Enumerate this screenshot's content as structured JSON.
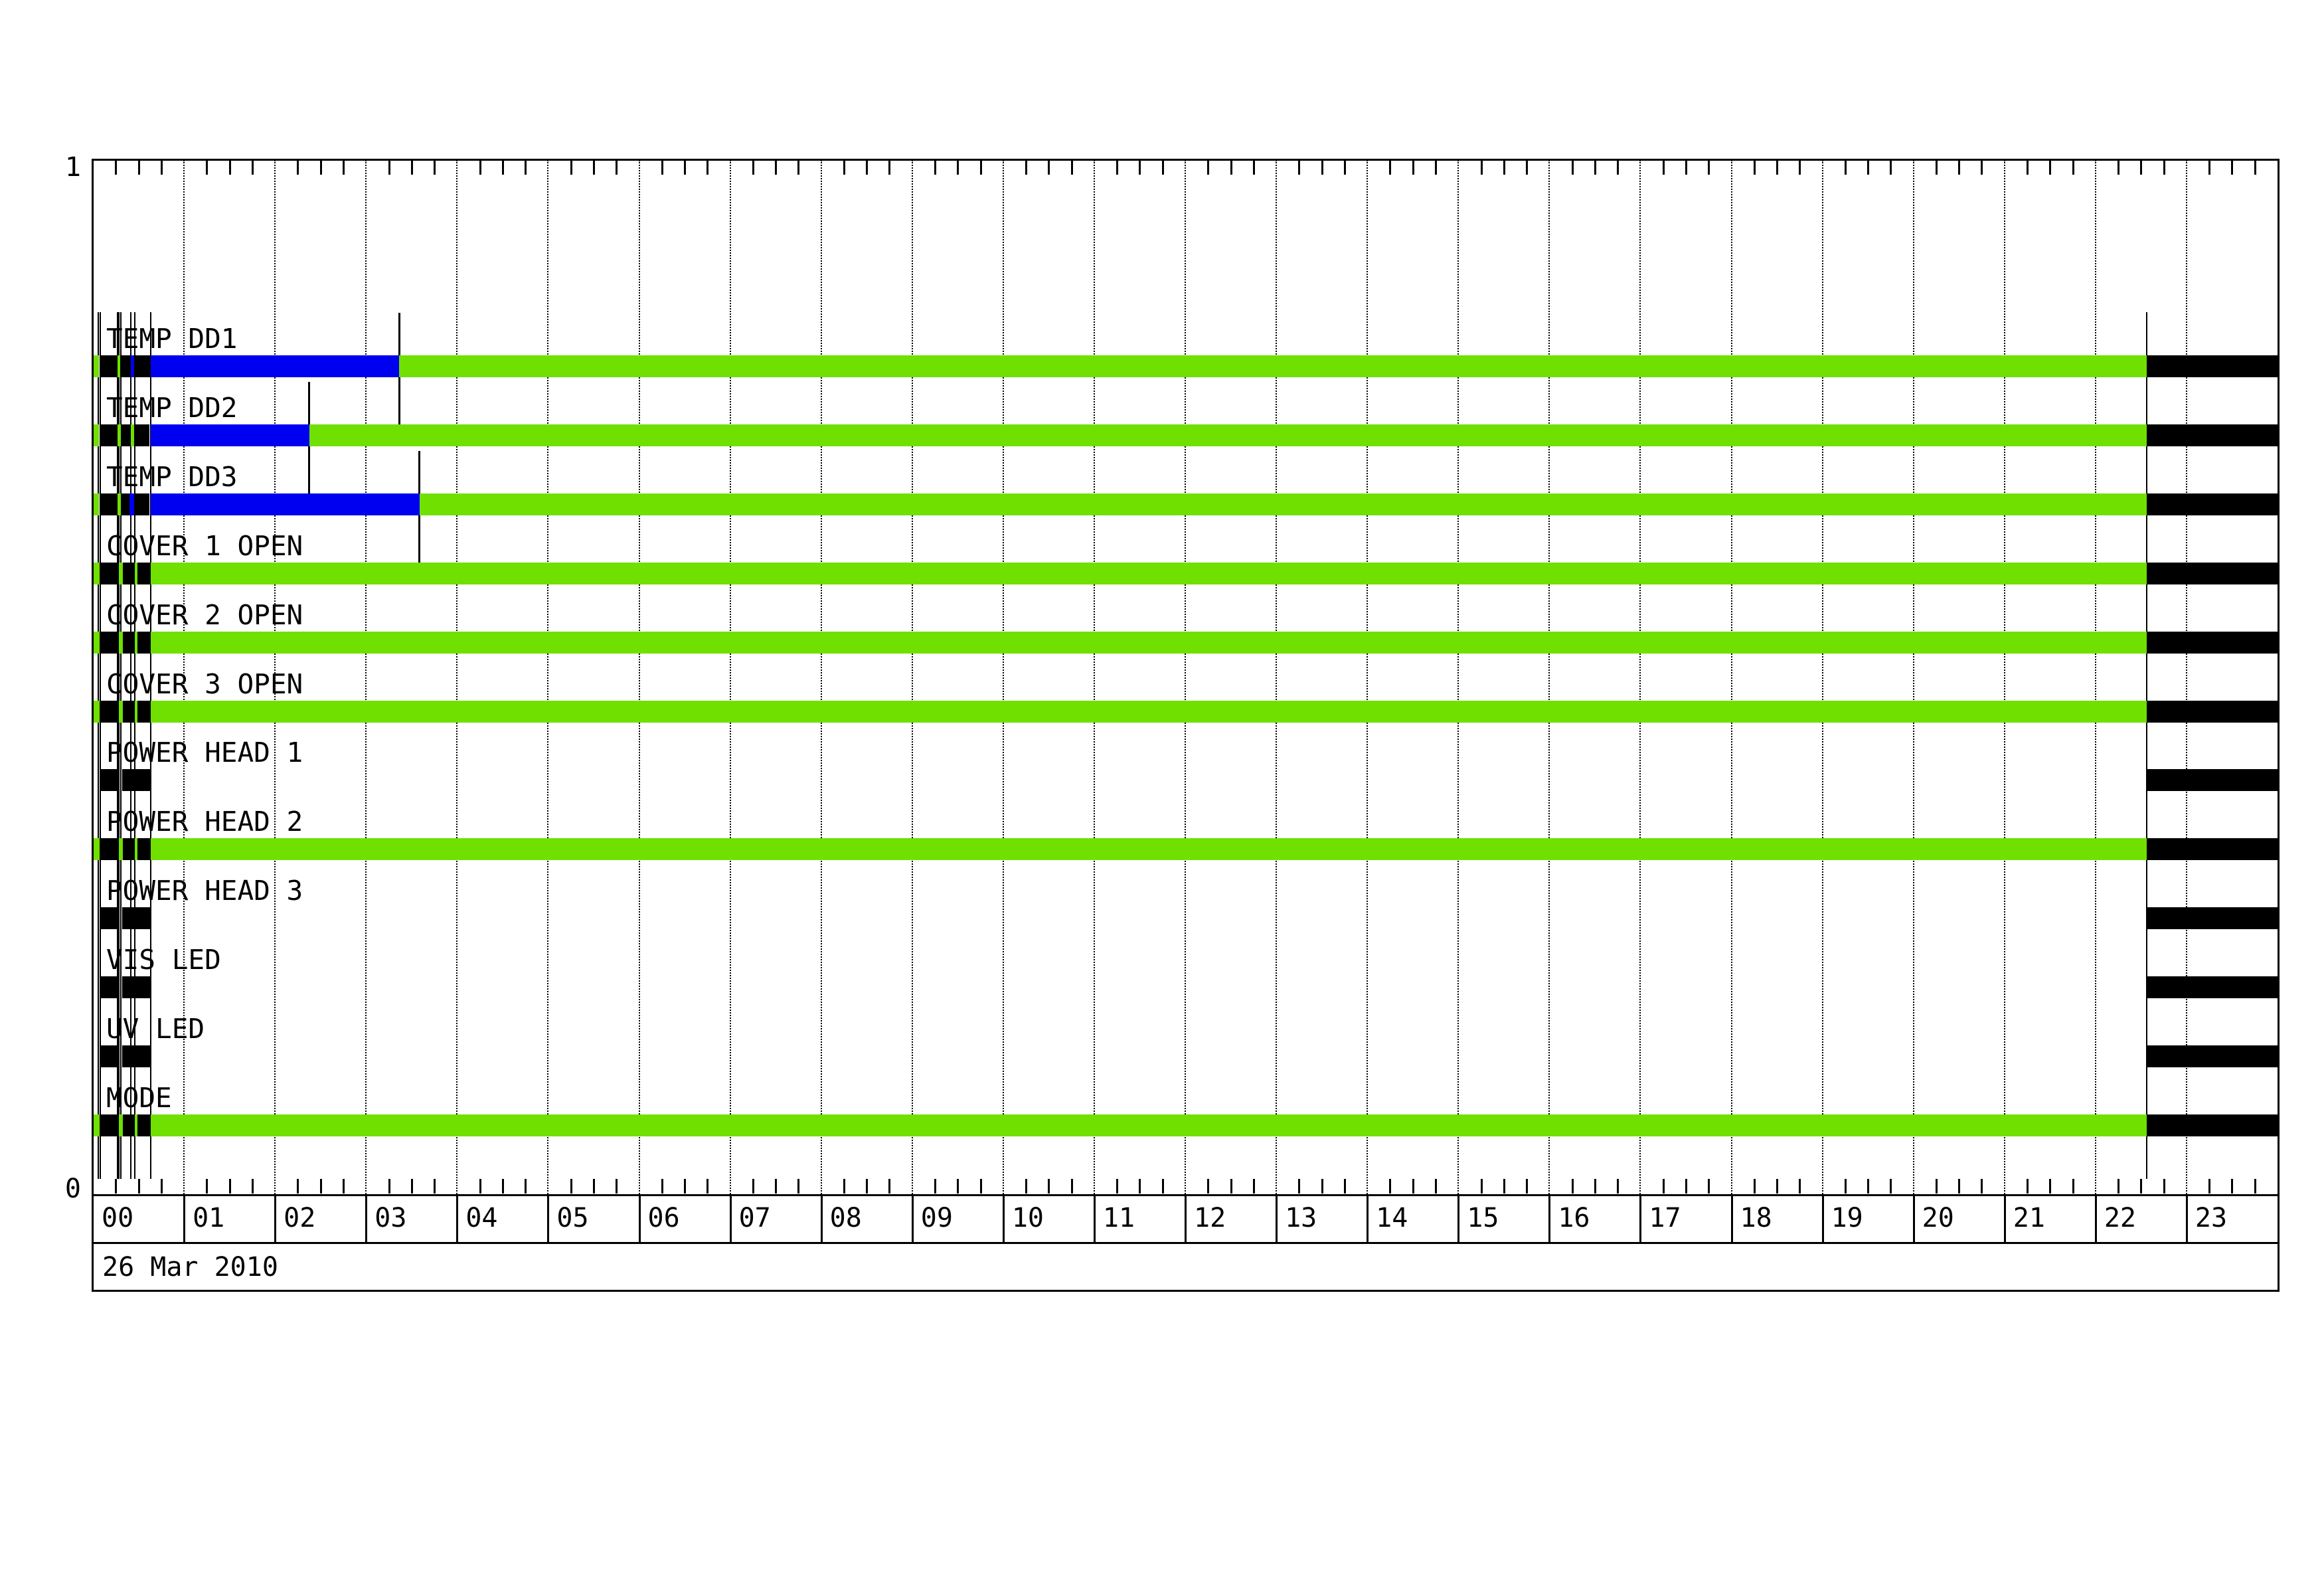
{
  "chart_data": {
    "type": "timeline",
    "title": "",
    "date_label": "26 Mar 2010",
    "y_axis": {
      "top_label": "1",
      "bottom_label": "0"
    },
    "x_axis": {
      "range_hours": [
        0,
        24
      ],
      "hour_labels": [
        "00",
        "01",
        "02",
        "03",
        "04",
        "05",
        "06",
        "07",
        "08",
        "09",
        "10",
        "11",
        "12",
        "13",
        "14",
        "15",
        "16",
        "17",
        "18",
        "19",
        "20",
        "21",
        "22",
        "23"
      ],
      "minor_tick_minutes": 15,
      "grid": "dotted-hourly"
    },
    "colors": {
      "green": "#6FE000",
      "blue": "#0000F0",
      "black": "#000000",
      "background": "#FFFFFF"
    },
    "event_lines_hours": [
      0.061,
      0.078,
      0.268,
      0.287,
      0.304,
      0.413,
      0.457,
      0.632,
      22.563
    ],
    "rows": [
      {
        "label": "TEMP DD1",
        "marker_hour": 3.363,
        "segments": [
          [
            0,
            0.068,
            "green"
          ],
          [
            0.078,
            0.268,
            "black"
          ],
          [
            0.272,
            0.297,
            "green"
          ],
          [
            0.304,
            0.406,
            "black"
          ],
          [
            0.413,
            0.452,
            "blue"
          ],
          [
            0.457,
            0.627,
            "black"
          ],
          [
            0.632,
            3.363,
            "blue"
          ],
          [
            3.363,
            22.563,
            "green"
          ],
          [
            22.563,
            24,
            "black"
          ]
        ]
      },
      {
        "label": "TEMP DD2",
        "marker_hour": 2.378,
        "segments": [
          [
            0,
            0.068,
            "green"
          ],
          [
            0.078,
            0.268,
            "black"
          ],
          [
            0.272,
            0.309,
            "green"
          ],
          [
            0.312,
            0.409,
            "black"
          ],
          [
            0.414,
            0.45,
            "green"
          ],
          [
            0.457,
            0.62,
            "black"
          ],
          [
            0.632,
            2.378,
            "blue"
          ],
          [
            2.378,
            22.563,
            "green"
          ],
          [
            22.563,
            24,
            "black"
          ]
        ]
      },
      {
        "label": "TEMP DD3",
        "marker_hour": 3.587,
        "segments": [
          [
            0,
            0.068,
            "green"
          ],
          [
            0.073,
            0.268,
            "black"
          ],
          [
            0.272,
            0.309,
            "green"
          ],
          [
            0.316,
            0.401,
            "black"
          ],
          [
            0.403,
            0.45,
            "blue"
          ],
          [
            0.457,
            0.62,
            "black"
          ],
          [
            0.632,
            3.587,
            "blue"
          ],
          [
            3.587,
            22.563,
            "green"
          ],
          [
            22.563,
            24,
            "black"
          ]
        ]
      },
      {
        "label": "COVER 1 OPEN",
        "segments": [
          [
            0,
            0.073,
            "green"
          ],
          [
            0.073,
            0.287,
            "black"
          ],
          [
            0.287,
            0.328,
            "green"
          ],
          [
            0.328,
            0.457,
            "black"
          ],
          [
            0.457,
            0.491,
            "green"
          ],
          [
            0.491,
            0.632,
            "black"
          ],
          [
            0.632,
            22.563,
            "green"
          ],
          [
            22.563,
            24,
            "black"
          ]
        ]
      },
      {
        "label": "COVER 2 OPEN",
        "segments": [
          [
            0,
            0.073,
            "green"
          ],
          [
            0.073,
            0.287,
            "black"
          ],
          [
            0.287,
            0.328,
            "green"
          ],
          [
            0.328,
            0.457,
            "black"
          ],
          [
            0.457,
            0.491,
            "green"
          ],
          [
            0.491,
            0.632,
            "black"
          ],
          [
            0.632,
            22.563,
            "green"
          ],
          [
            22.563,
            24,
            "black"
          ]
        ]
      },
      {
        "label": "COVER 3 OPEN",
        "segments": [
          [
            0,
            0.073,
            "green"
          ],
          [
            0.073,
            0.287,
            "black"
          ],
          [
            0.287,
            0.328,
            "green"
          ],
          [
            0.328,
            0.457,
            "black"
          ],
          [
            0.457,
            0.491,
            "green"
          ],
          [
            0.491,
            0.632,
            "black"
          ],
          [
            0.632,
            22.563,
            "green"
          ],
          [
            22.563,
            24,
            "black"
          ]
        ]
      },
      {
        "label": "POWER HEAD 1",
        "segments": [
          [
            0.078,
            0.287,
            "black"
          ],
          [
            0.321,
            0.632,
            "black"
          ],
          [
            22.563,
            24,
            "black"
          ]
        ]
      },
      {
        "label": "POWER HEAD 2",
        "segments": [
          [
            0,
            0.073,
            "green"
          ],
          [
            0.073,
            0.287,
            "black"
          ],
          [
            0.287,
            0.328,
            "green"
          ],
          [
            0.328,
            0.457,
            "black"
          ],
          [
            0.457,
            0.491,
            "green"
          ],
          [
            0.491,
            0.632,
            "black"
          ],
          [
            0.632,
            22.563,
            "green"
          ],
          [
            22.563,
            24,
            "black"
          ]
        ]
      },
      {
        "label": "POWER HEAD 3",
        "segments": [
          [
            0.078,
            0.287,
            "black"
          ],
          [
            0.321,
            0.632,
            "black"
          ],
          [
            22.563,
            24,
            "black"
          ]
        ]
      },
      {
        "label": "VIS LED",
        "segments": [
          [
            0.078,
            0.287,
            "black"
          ],
          [
            0.321,
            0.632,
            "black"
          ],
          [
            22.563,
            24,
            "black"
          ]
        ]
      },
      {
        "label": "UV LED",
        "segments": [
          [
            0.078,
            0.287,
            "black"
          ],
          [
            0.321,
            0.632,
            "black"
          ],
          [
            22.563,
            24,
            "black"
          ]
        ]
      },
      {
        "label": "MODE",
        "segments": [
          [
            0,
            0.073,
            "green"
          ],
          [
            0.073,
            0.287,
            "black"
          ],
          [
            0.287,
            0.328,
            "green"
          ],
          [
            0.328,
            0.457,
            "black"
          ],
          [
            0.457,
            0.491,
            "green"
          ],
          [
            0.491,
            0.632,
            "black"
          ],
          [
            0.632,
            22.563,
            "green"
          ],
          [
            22.563,
            24,
            "black"
          ]
        ]
      }
    ]
  }
}
